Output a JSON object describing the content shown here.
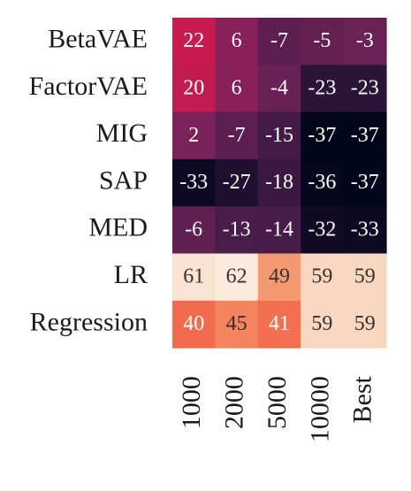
{
  "chart_data": {
    "type": "heatmap",
    "title": "",
    "xlabel": "",
    "ylabel": "",
    "rows": [
      "BetaVAE",
      "FactorVAE",
      "MIG",
      "SAP",
      "MED",
      "LR",
      "Regression"
    ],
    "columns": [
      "1000",
      "2000",
      "5000",
      "10000",
      "Best"
    ],
    "values": [
      [
        22,
        6,
        -7,
        -5,
        -3
      ],
      [
        20,
        6,
        -4,
        -23,
        -23
      ],
      [
        2,
        -7,
        -15,
        -37,
        -37
      ],
      [
        -33,
        -27,
        -18,
        -36,
        -37
      ],
      [
        -6,
        -13,
        -14,
        -32,
        -33
      ],
      [
        61,
        62,
        49,
        59,
        59
      ],
      [
        40,
        45,
        41,
        59,
        59
      ]
    ],
    "colorscale": "rocket",
    "text_color_dark": "#3b2f2f",
    "text_color_light": "#ffffff"
  }
}
